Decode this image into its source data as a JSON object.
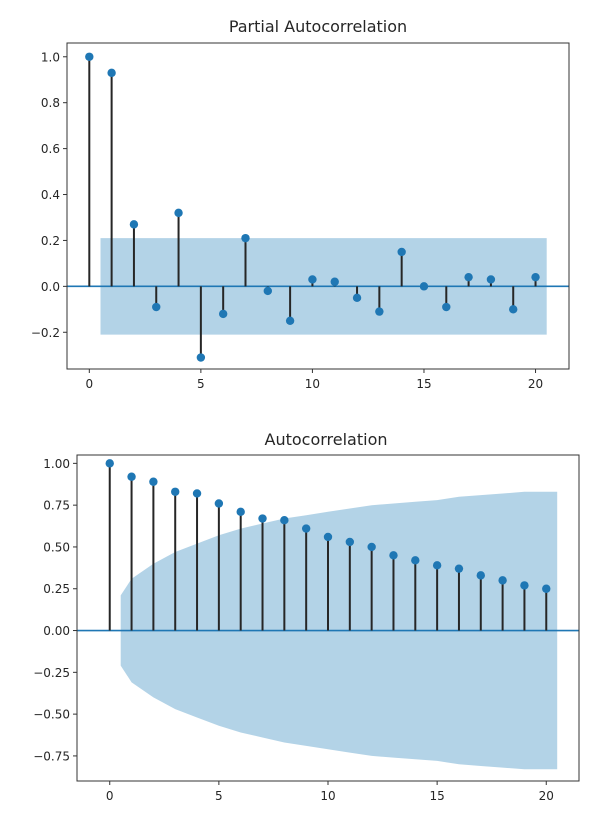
{
  "colors": {
    "marker": "#1f77b4",
    "stem": "#262626",
    "band": "#a6cbe3",
    "zero_line": "#1f77b4"
  },
  "chart_data": [
    {
      "type": "stem",
      "title": "Partial Autocorrelation",
      "xlabel": "",
      "ylabel": "",
      "xlim": [
        -1,
        21.5
      ],
      "ylim": [
        -0.36,
        1.06
      ],
      "x_ticks": [
        0,
        5,
        10,
        15,
        20
      ],
      "x_tick_labels": [
        "0",
        "5",
        "10",
        "15",
        "20"
      ],
      "y_ticks": [
        1.0,
        0.8,
        0.6,
        0.4,
        0.2,
        0.0,
        -0.2
      ],
      "y_tick_labels": [
        "1.0",
        "0.8",
        "0.6",
        "0.4",
        "0.2",
        "0.0",
        "−0.2"
      ],
      "grid": false,
      "lags": [
        0,
        1,
        2,
        3,
        4,
        5,
        6,
        7,
        8,
        9,
        10,
        11,
        12,
        13,
        14,
        15,
        16,
        17,
        18,
        19,
        20
      ],
      "values": [
        1.0,
        0.93,
        0.27,
        -0.09,
        0.32,
        -0.31,
        -0.12,
        0.21,
        -0.02,
        -0.15,
        0.03,
        0.02,
        -0.05,
        -0.11,
        0.15,
        0.0,
        -0.09,
        0.04,
        0.03,
        -0.1,
        0.04
      ],
      "confidence_band": {
        "x": [
          0.5,
          20.5
        ],
        "upper": [
          0.21,
          0.21
        ],
        "lower": [
          -0.21,
          -0.21
        ]
      }
    },
    {
      "type": "stem",
      "title": "Autocorrelation",
      "xlabel": "",
      "ylabel": "",
      "xlim": [
        -1.5,
        21.5
      ],
      "ylim": [
        -0.9,
        1.05
      ],
      "x_ticks": [
        0,
        5,
        10,
        15,
        20
      ],
      "x_tick_labels": [
        "0",
        "5",
        "10",
        "15",
        "20"
      ],
      "y_ticks": [
        1.0,
        0.75,
        0.5,
        0.25,
        0.0,
        -0.25,
        -0.5,
        -0.75
      ],
      "y_tick_labels": [
        "1.00",
        "0.75",
        "0.50",
        "0.25",
        "0.00",
        "−0.25",
        "−0.50",
        "−0.75"
      ],
      "grid": false,
      "lags": [
        0,
        1,
        2,
        3,
        4,
        5,
        6,
        7,
        8,
        9,
        10,
        11,
        12,
        13,
        14,
        15,
        16,
        17,
        18,
        19,
        20
      ],
      "values": [
        1.0,
        0.92,
        0.89,
        0.83,
        0.82,
        0.76,
        0.71,
        0.67,
        0.66,
        0.61,
        0.56,
        0.53,
        0.5,
        0.45,
        0.42,
        0.39,
        0.37,
        0.33,
        0.3,
        0.27,
        0.25
      ],
      "confidence_band": {
        "x": [
          0.5,
          1,
          2,
          3,
          4,
          5,
          6,
          7,
          8,
          9,
          10,
          11,
          12,
          13,
          14,
          15,
          16,
          17,
          18,
          19,
          20,
          20.5
        ],
        "upper": [
          0.21,
          0.31,
          0.4,
          0.47,
          0.52,
          0.57,
          0.61,
          0.64,
          0.67,
          0.69,
          0.71,
          0.73,
          0.75,
          0.76,
          0.77,
          0.78,
          0.8,
          0.81,
          0.82,
          0.83,
          0.83,
          0.83
        ],
        "lower": [
          -0.21,
          -0.31,
          -0.4,
          -0.47,
          -0.52,
          -0.57,
          -0.61,
          -0.64,
          -0.67,
          -0.69,
          -0.71,
          -0.73,
          -0.75,
          -0.76,
          -0.77,
          -0.78,
          -0.8,
          -0.81,
          -0.82,
          -0.83,
          -0.83,
          -0.83
        ]
      }
    }
  ]
}
